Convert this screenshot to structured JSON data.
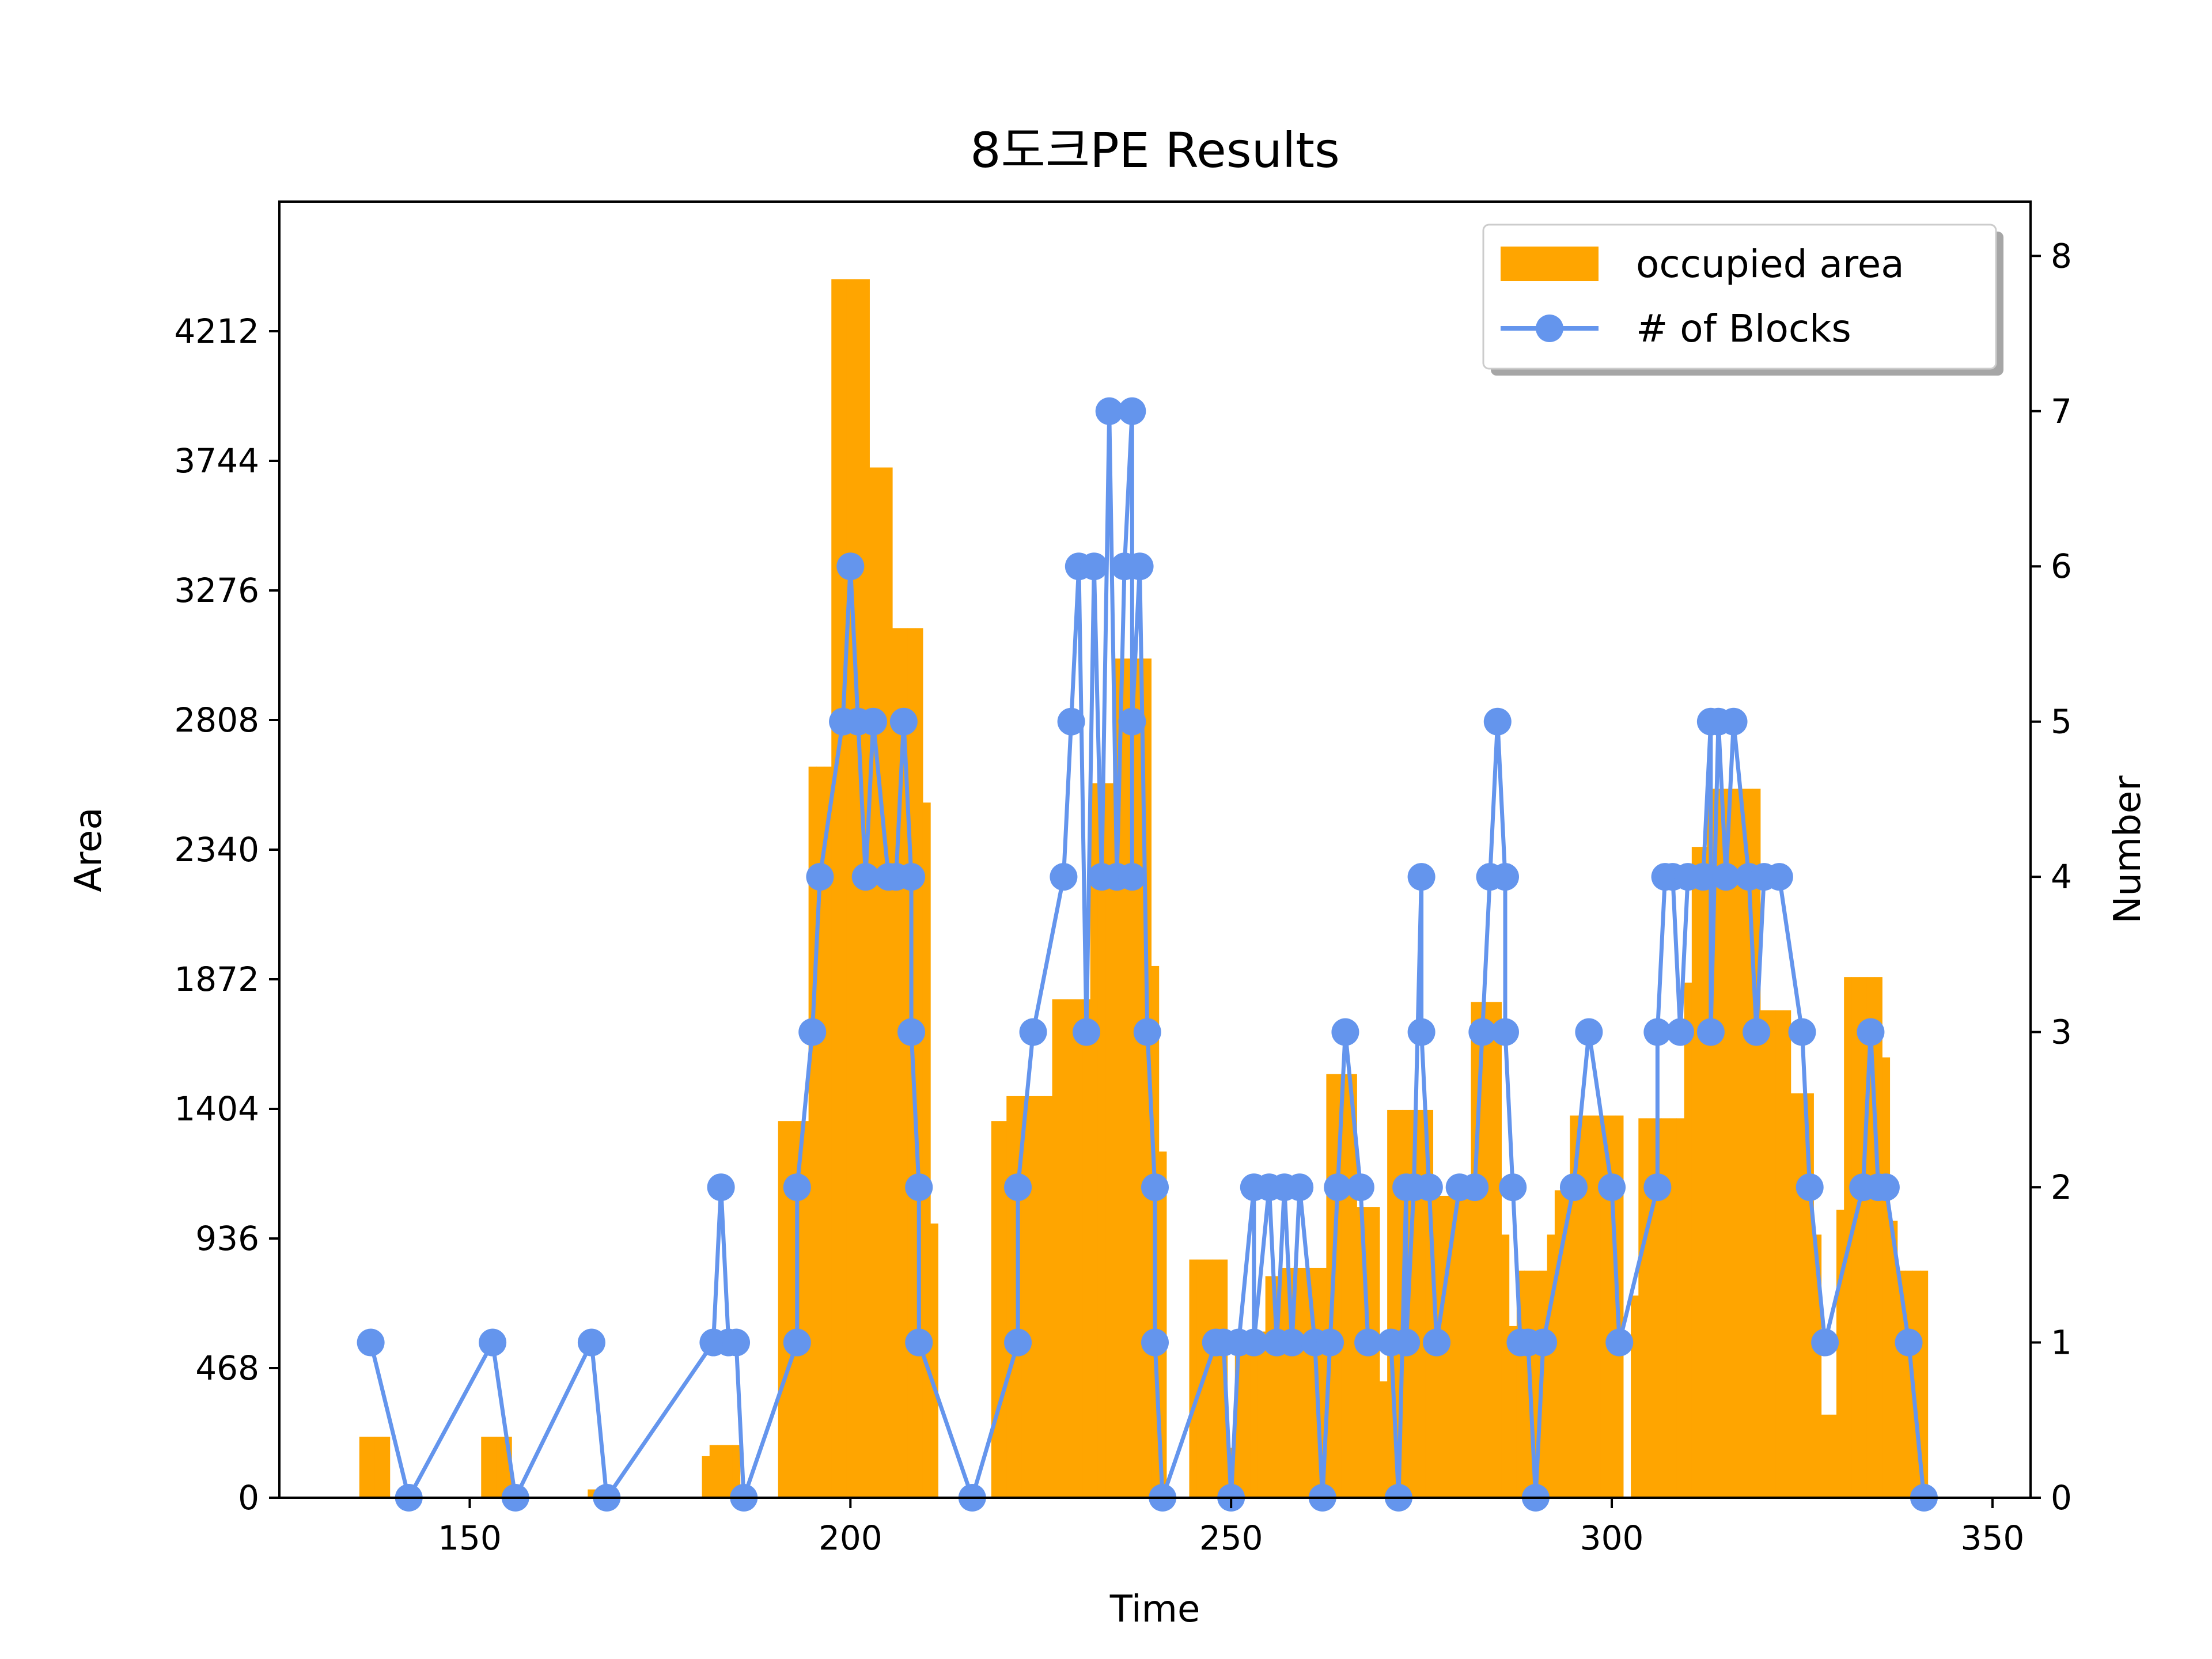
{
  "chart_data": {
    "type": "bar+line",
    "title": "8도크PE Results",
    "xlabel": "Time",
    "ylabel_left": "Area",
    "ylabel_right": "Number",
    "xlim": [
      125,
      355
    ],
    "ylim_left": [
      0,
      4680
    ],
    "ylim_right": [
      0,
      8.35
    ],
    "x_ticks": [
      150,
      200,
      250,
      300,
      350
    ],
    "y_left_ticks": [
      0,
      468,
      936,
      1404,
      1872,
      2340,
      2808,
      3276,
      3744,
      4212
    ],
    "y_right_ticks": [
      0,
      1,
      2,
      3,
      4,
      5,
      6,
      7,
      8
    ],
    "legend_position": "upper right",
    "bar_width": 1,
    "series": [
      {
        "name": "occupied area",
        "type": "bar",
        "axis": "left",
        "color": "#FFA500",
        "points": [
          [
            136,
            220
          ],
          [
            137,
            220
          ],
          [
            138,
            220
          ],
          [
            139,
            220
          ],
          [
            152,
            220
          ],
          [
            153,
            220
          ],
          [
            154,
            220
          ],
          [
            155,
            220
          ],
          [
            166,
            30
          ],
          [
            181,
            150
          ],
          [
            182,
            190
          ],
          [
            183,
            190
          ],
          [
            184,
            190
          ],
          [
            185,
            190
          ],
          [
            191,
            1360
          ],
          [
            192,
            1360
          ],
          [
            193,
            1360
          ],
          [
            194,
            1360
          ],
          [
            195,
            2640
          ],
          [
            196,
            2640
          ],
          [
            197,
            2640
          ],
          [
            198,
            4400
          ],
          [
            199,
            4400
          ],
          [
            200,
            4400
          ],
          [
            201,
            4400
          ],
          [
            202,
            4400
          ],
          [
            203,
            3720
          ],
          [
            204,
            3720
          ],
          [
            205,
            3720
          ],
          [
            206,
            3140
          ],
          [
            207,
            3140
          ],
          [
            208,
            3140
          ],
          [
            209,
            3140
          ],
          [
            210,
            2510
          ],
          [
            211,
            990
          ],
          [
            219,
            1360
          ],
          [
            220,
            1360
          ],
          [
            221,
            1450
          ],
          [
            222,
            1450
          ],
          [
            223,
            1450
          ],
          [
            224,
            1450
          ],
          [
            225,
            1450
          ],
          [
            226,
            1450
          ],
          [
            227,
            1800
          ],
          [
            228,
            1800
          ],
          [
            229,
            1800
          ],
          [
            230,
            1800
          ],
          [
            231,
            1800
          ],
          [
            232,
            2580
          ],
          [
            233,
            2580
          ],
          [
            234,
            2580
          ],
          [
            235,
            3030
          ],
          [
            236,
            3030
          ],
          [
            237,
            3030
          ],
          [
            238,
            3030
          ],
          [
            239,
            3030
          ],
          [
            240,
            1920
          ],
          [
            241,
            1250
          ],
          [
            245,
            860
          ],
          [
            246,
            860
          ],
          [
            247,
            860
          ],
          [
            248,
            860
          ],
          [
            249,
            860
          ],
          [
            250,
            180
          ],
          [
            251,
            600
          ],
          [
            252,
            600
          ],
          [
            253,
            600
          ],
          [
            254,
            600
          ],
          [
            255,
            800
          ],
          [
            256,
            800
          ],
          [
            257,
            830
          ],
          [
            258,
            830
          ],
          [
            259,
            830
          ],
          [
            260,
            830
          ],
          [
            261,
            830
          ],
          [
            262,
            830
          ],
          [
            263,
            1530
          ],
          [
            264,
            1530
          ],
          [
            265,
            1530
          ],
          [
            266,
            1530
          ],
          [
            267,
            1050
          ],
          [
            268,
            1050
          ],
          [
            269,
            1050
          ],
          [
            270,
            420
          ],
          [
            271,
            1400
          ],
          [
            272,
            1400
          ],
          [
            273,
            1400
          ],
          [
            274,
            1400
          ],
          [
            275,
            1400
          ],
          [
            276,
            1400
          ],
          [
            277,
            1090
          ],
          [
            278,
            1090
          ],
          [
            279,
            1090
          ],
          [
            280,
            1090
          ],
          [
            281,
            1090
          ],
          [
            282,
            1790
          ],
          [
            283,
            1790
          ],
          [
            284,
            1790
          ],
          [
            285,
            1790
          ],
          [
            286,
            950
          ],
          [
            287,
            620
          ],
          [
            288,
            820
          ],
          [
            289,
            820
          ],
          [
            290,
            820
          ],
          [
            291,
            820
          ],
          [
            292,
            950
          ],
          [
            293,
            1110
          ],
          [
            294,
            1110
          ],
          [
            295,
            1380
          ],
          [
            296,
            1380
          ],
          [
            297,
            1380
          ],
          [
            298,
            1380
          ],
          [
            299,
            1380
          ],
          [
            300,
            1380
          ],
          [
            301,
            1380
          ],
          [
            303,
            730
          ],
          [
            304,
            1370
          ],
          [
            305,
            1370
          ],
          [
            306,
            1370
          ],
          [
            307,
            1370
          ],
          [
            308,
            1370
          ],
          [
            309,
            1370
          ],
          [
            310,
            1860
          ],
          [
            311,
            2350
          ],
          [
            312,
            2350
          ],
          [
            313,
            2560
          ],
          [
            314,
            2560
          ],
          [
            315,
            2560
          ],
          [
            316,
            2560
          ],
          [
            317,
            2560
          ],
          [
            318,
            2560
          ],
          [
            319,
            2560
          ],
          [
            320,
            1760
          ],
          [
            321,
            1760
          ],
          [
            322,
            1760
          ],
          [
            323,
            1760
          ],
          [
            324,
            1460
          ],
          [
            325,
            1460
          ],
          [
            326,
            1460
          ],
          [
            327,
            950
          ],
          [
            328,
            300
          ],
          [
            329,
            300
          ],
          [
            330,
            1040
          ],
          [
            331,
            1880
          ],
          [
            332,
            1880
          ],
          [
            333,
            1880
          ],
          [
            334,
            1880
          ],
          [
            335,
            1880
          ],
          [
            336,
            1590
          ],
          [
            337,
            1000
          ],
          [
            338,
            820
          ],
          [
            339,
            820
          ],
          [
            340,
            820
          ],
          [
            341,
            820
          ]
        ]
      },
      {
        "name": "# of Blocks",
        "type": "line",
        "axis": "right",
        "color": "#6495ED",
        "points": [
          [
            137,
            1
          ],
          [
            142,
            0
          ],
          [
            153,
            1
          ],
          [
            156,
            0
          ],
          [
            166,
            1
          ],
          [
            168,
            0
          ],
          [
            182,
            1
          ],
          [
            183,
            2
          ],
          [
            184,
            1
          ],
          [
            185,
            1
          ],
          [
            186,
            0
          ],
          [
            193,
            1
          ],
          [
            193,
            2
          ],
          [
            195,
            3
          ],
          [
            196,
            4
          ],
          [
            199,
            5
          ],
          [
            200,
            6
          ],
          [
            201,
            5
          ],
          [
            202,
            4
          ],
          [
            203,
            5
          ],
          [
            205,
            4
          ],
          [
            206,
            4
          ],
          [
            207,
            5
          ],
          [
            208,
            4
          ],
          [
            208,
            3
          ],
          [
            209,
            2
          ],
          [
            209,
            1
          ],
          [
            216,
            0
          ],
          [
            222,
            1
          ],
          [
            222,
            2
          ],
          [
            224,
            3
          ],
          [
            228,
            4
          ],
          [
            229,
            5
          ],
          [
            230,
            6
          ],
          [
            231,
            3
          ],
          [
            232,
            6
          ],
          [
            233,
            4
          ],
          [
            234,
            7
          ],
          [
            235,
            4
          ],
          [
            236,
            6
          ],
          [
            237,
            7
          ],
          [
            237,
            4
          ],
          [
            237,
            5
          ],
          [
            238,
            6
          ],
          [
            239,
            3
          ],
          [
            240,
            2
          ],
          [
            240,
            1
          ],
          [
            241,
            0
          ],
          [
            248,
            1
          ],
          [
            249,
            1
          ],
          [
            250,
            0
          ],
          [
            251,
            1
          ],
          [
            253,
            2
          ],
          [
            253,
            1
          ],
          [
            255,
            2
          ],
          [
            256,
            1
          ],
          [
            257,
            2
          ],
          [
            258,
            1
          ],
          [
            259,
            2
          ],
          [
            261,
            1
          ],
          [
            262,
            0
          ],
          [
            263,
            1
          ],
          [
            264,
            2
          ],
          [
            265,
            3
          ],
          [
            267,
            2
          ],
          [
            268,
            1
          ],
          [
            271,
            1
          ],
          [
            272,
            0
          ],
          [
            273,
            2
          ],
          [
            273,
            1
          ],
          [
            274,
            2
          ],
          [
            275,
            4
          ],
          [
            275,
            3
          ],
          [
            276,
            2
          ],
          [
            277,
            1
          ],
          [
            280,
            2
          ],
          [
            282,
            2
          ],
          [
            283,
            3
          ],
          [
            284,
            4
          ],
          [
            285,
            5
          ],
          [
            286,
            4
          ],
          [
            286,
            3
          ],
          [
            287,
            2
          ],
          [
            288,
            1
          ],
          [
            289,
            1
          ],
          [
            290,
            0
          ],
          [
            291,
            1
          ],
          [
            295,
            2
          ],
          [
            297,
            3
          ],
          [
            300,
            2
          ],
          [
            301,
            1
          ],
          [
            306,
            2
          ],
          [
            306,
            3
          ],
          [
            307,
            4
          ],
          [
            308,
            4
          ],
          [
            309,
            3
          ],
          [
            310,
            4
          ],
          [
            312,
            4
          ],
          [
            313,
            5
          ],
          [
            313,
            3
          ],
          [
            314,
            5
          ],
          [
            315,
            4
          ],
          [
            316,
            5
          ],
          [
            318,
            4
          ],
          [
            319,
            3
          ],
          [
            320,
            4
          ],
          [
            322,
            4
          ],
          [
            325,
            3
          ],
          [
            326,
            2
          ],
          [
            328,
            1
          ],
          [
            333,
            2
          ],
          [
            334,
            3
          ],
          [
            335,
            2
          ],
          [
            336,
            2
          ],
          [
            339,
            1
          ],
          [
            341,
            0
          ]
        ]
      }
    ]
  }
}
